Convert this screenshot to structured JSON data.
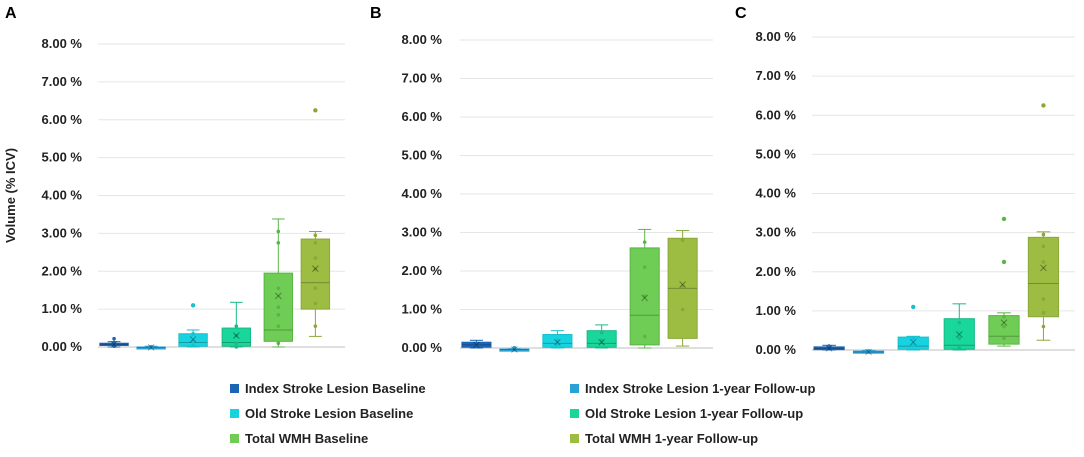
{
  "chart_data": [
    {
      "type": "boxplot",
      "panel_label": "A",
      "ylabel": "Volume (% ICV)",
      "ylim": [
        0,
        8
      ],
      "yticks": [
        "0.00 %",
        "1.00 %",
        "2.00 %",
        "3.00 %",
        "4.00 %",
        "5.00 %",
        "6.00 %",
        "7.00 %",
        "8.00 %"
      ],
      "series": [
        {
          "name": "Index Stroke Lesion Baseline",
          "min": 0.0,
          "q1": 0.04,
          "median": 0.07,
          "q3": 0.1,
          "max": 0.14,
          "mean": 0.07,
          "points": [
            0.22,
            0.12,
            0.05,
            0.02
          ],
          "outliers": []
        },
        {
          "name": "Index Stroke Lesion 1-year Follow-up",
          "min": -0.05,
          "q1": -0.03,
          "median": -0.01,
          "q3": 0.0,
          "max": 0.02,
          "mean": -0.01,
          "points": [
            0.01,
            -0.02
          ],
          "outliers": []
        },
        {
          "name": "Old Stroke Lesion Baseline",
          "min": 0.0,
          "q1": 0.02,
          "median": 0.12,
          "q3": 0.35,
          "max": 0.45,
          "mean": 0.2,
          "points": [
            0.35,
            0.15,
            0.04
          ],
          "outliers": [
            1.1
          ]
        },
        {
          "name": "Old Stroke Lesion 1-year Follow-up",
          "min": 0.0,
          "q1": 0.02,
          "median": 0.12,
          "q3": 0.5,
          "max": 1.18,
          "mean": 0.3,
          "points": [
            0.55,
            0.3,
            0.1,
            0.0
          ],
          "outliers": []
        },
        {
          "name": "Total WMH Baseline",
          "min": 0.0,
          "q1": 0.15,
          "median": 0.45,
          "q3": 1.95,
          "max": 3.38,
          "mean": 1.35,
          "points": [
            3.05,
            2.75,
            1.55,
            1.05,
            0.85,
            0.55,
            0.1
          ],
          "outliers": []
        },
        {
          "name": "Total WMH 1-year Follow-up",
          "min": 0.28,
          "q1": 1.0,
          "median": 1.7,
          "q3": 2.85,
          "max": 3.05,
          "mean": 2.07,
          "points": [
            2.95,
            2.75,
            2.35,
            2.05,
            1.55,
            1.15,
            0.55
          ],
          "outliers": [
            6.25
          ]
        }
      ]
    },
    {
      "type": "boxplot",
      "panel_label": "B",
      "ylim": [
        0,
        8
      ],
      "yticks": [
        "0.00 %",
        "1.00 %",
        "2.00 %",
        "3.00 %",
        "4.00 %",
        "5.00 %",
        "6.00 %",
        "7.00 %",
        "8.00 %"
      ],
      "series": [
        {
          "name": "Index Stroke Lesion Baseline",
          "min": 0.0,
          "q1": 0.02,
          "median": 0.08,
          "q3": 0.15,
          "max": 0.2,
          "mean": 0.08,
          "points": [
            0.05
          ],
          "outliers": []
        },
        {
          "name": "Index Stroke Lesion 1-year Follow-up",
          "min": -0.06,
          "q1": -0.05,
          "median": -0.04,
          "q3": -0.03,
          "max": -0.02,
          "mean": -0.04,
          "points": [
            0.01
          ],
          "outliers": []
        },
        {
          "name": "Old Stroke Lesion Baseline",
          "min": 0.0,
          "q1": 0.02,
          "median": 0.12,
          "q3": 0.35,
          "max": 0.45,
          "mean": 0.15,
          "points": [
            0.2,
            0.1
          ],
          "outliers": []
        },
        {
          "name": "Old Stroke Lesion 1-year Follow-up",
          "min": 0.0,
          "q1": 0.02,
          "median": 0.12,
          "q3": 0.45,
          "max": 0.6,
          "mean": 0.15,
          "points": [
            0.4,
            0.2
          ],
          "outliers": []
        },
        {
          "name": "Total WMH Baseline",
          "min": 0.0,
          "q1": 0.08,
          "median": 0.85,
          "q3": 2.6,
          "max": 3.08,
          "mean": 1.3,
          "points": [
            2.75,
            2.1,
            1.35,
            0.3
          ],
          "outliers": []
        },
        {
          "name": "Total WMH 1-year Follow-up",
          "min": 0.05,
          "q1": 0.25,
          "median": 1.55,
          "q3": 2.85,
          "max": 3.05,
          "mean": 1.65,
          "points": [
            2.8,
            1.6,
            1.0
          ],
          "outliers": []
        }
      ]
    },
    {
      "type": "boxplot",
      "panel_label": "C",
      "ylim": [
        0,
        8
      ],
      "yticks": [
        "0.00 %",
        "1.00 %",
        "2.00 %",
        "3.00 %",
        "4.00 %",
        "5.00 %",
        "6.00 %",
        "7.00 %",
        "8.00 %"
      ],
      "series": [
        {
          "name": "Index Stroke Lesion Baseline",
          "min": 0.0,
          "q1": 0.01,
          "median": 0.04,
          "q3": 0.08,
          "max": 0.12,
          "mean": 0.04,
          "points": [
            0.1,
            0.05
          ],
          "outliers": []
        },
        {
          "name": "Index Stroke Lesion 1-year Follow-up",
          "min": -0.08,
          "q1": -0.07,
          "median": -0.05,
          "q3": -0.03,
          "max": -0.01,
          "mean": -0.05,
          "points": [
            -0.02
          ],
          "outliers": []
        },
        {
          "name": "Old Stroke Lesion Baseline",
          "min": 0.0,
          "q1": 0.02,
          "median": 0.1,
          "q3": 0.33,
          "max": 0.35,
          "mean": 0.2,
          "points": [
            0.3,
            0.12
          ],
          "outliers": [
            1.1
          ]
        },
        {
          "name": "Old Stroke Lesion 1-year Follow-up",
          "min": 0.0,
          "q1": 0.02,
          "median": 0.12,
          "q3": 0.8,
          "max": 1.18,
          "mean": 0.4,
          "points": [
            0.7,
            0.3,
            0.05
          ],
          "outliers": []
        },
        {
          "name": "Total WMH Baseline",
          "min": 0.1,
          "q1": 0.15,
          "median": 0.35,
          "q3": 0.88,
          "max": 0.95,
          "mean": 0.7,
          "points": [
            0.85,
            0.6,
            0.3
          ],
          "outliers": [
            3.35,
            2.25
          ]
        },
        {
          "name": "Total WMH 1-year Follow-up",
          "min": 0.25,
          "q1": 0.85,
          "median": 1.7,
          "q3": 2.88,
          "max": 3.02,
          "mean": 2.1,
          "points": [
            2.95,
            2.65,
            2.25,
            1.3,
            0.95,
            0.6
          ],
          "outliers": [
            6.25
          ]
        }
      ]
    }
  ],
  "legend": [
    {
      "label": "Index Stroke Lesion Baseline",
      "color": "#1a66b5"
    },
    {
      "label": "Index Stroke Lesion 1-year Follow-up",
      "color": "#29a3d6"
    },
    {
      "label": "Old Stroke Lesion Baseline",
      "color": "#17d3df"
    },
    {
      "label": "Old Stroke Lesion 1-year Follow-up",
      "color": "#19d69a"
    },
    {
      "label": "Total WMH Baseline",
      "color": "#6fcc55"
    },
    {
      "label": "Total WMH 1-year Follow-up",
      "color": "#9cbc42"
    }
  ],
  "colors": {
    "fill": [
      "#1a66b5",
      "#29a3d6",
      "#17d3df",
      "#19d69a",
      "#6fcc55",
      "#9cbc42"
    ],
    "whisker": [
      "#1a66b5",
      "#29a3d6",
      "#17c0cc",
      "#19b988",
      "#5ab545",
      "#8aa838"
    ],
    "gridline": "#e6e6e6",
    "baseline": "#bfbfbf"
  }
}
